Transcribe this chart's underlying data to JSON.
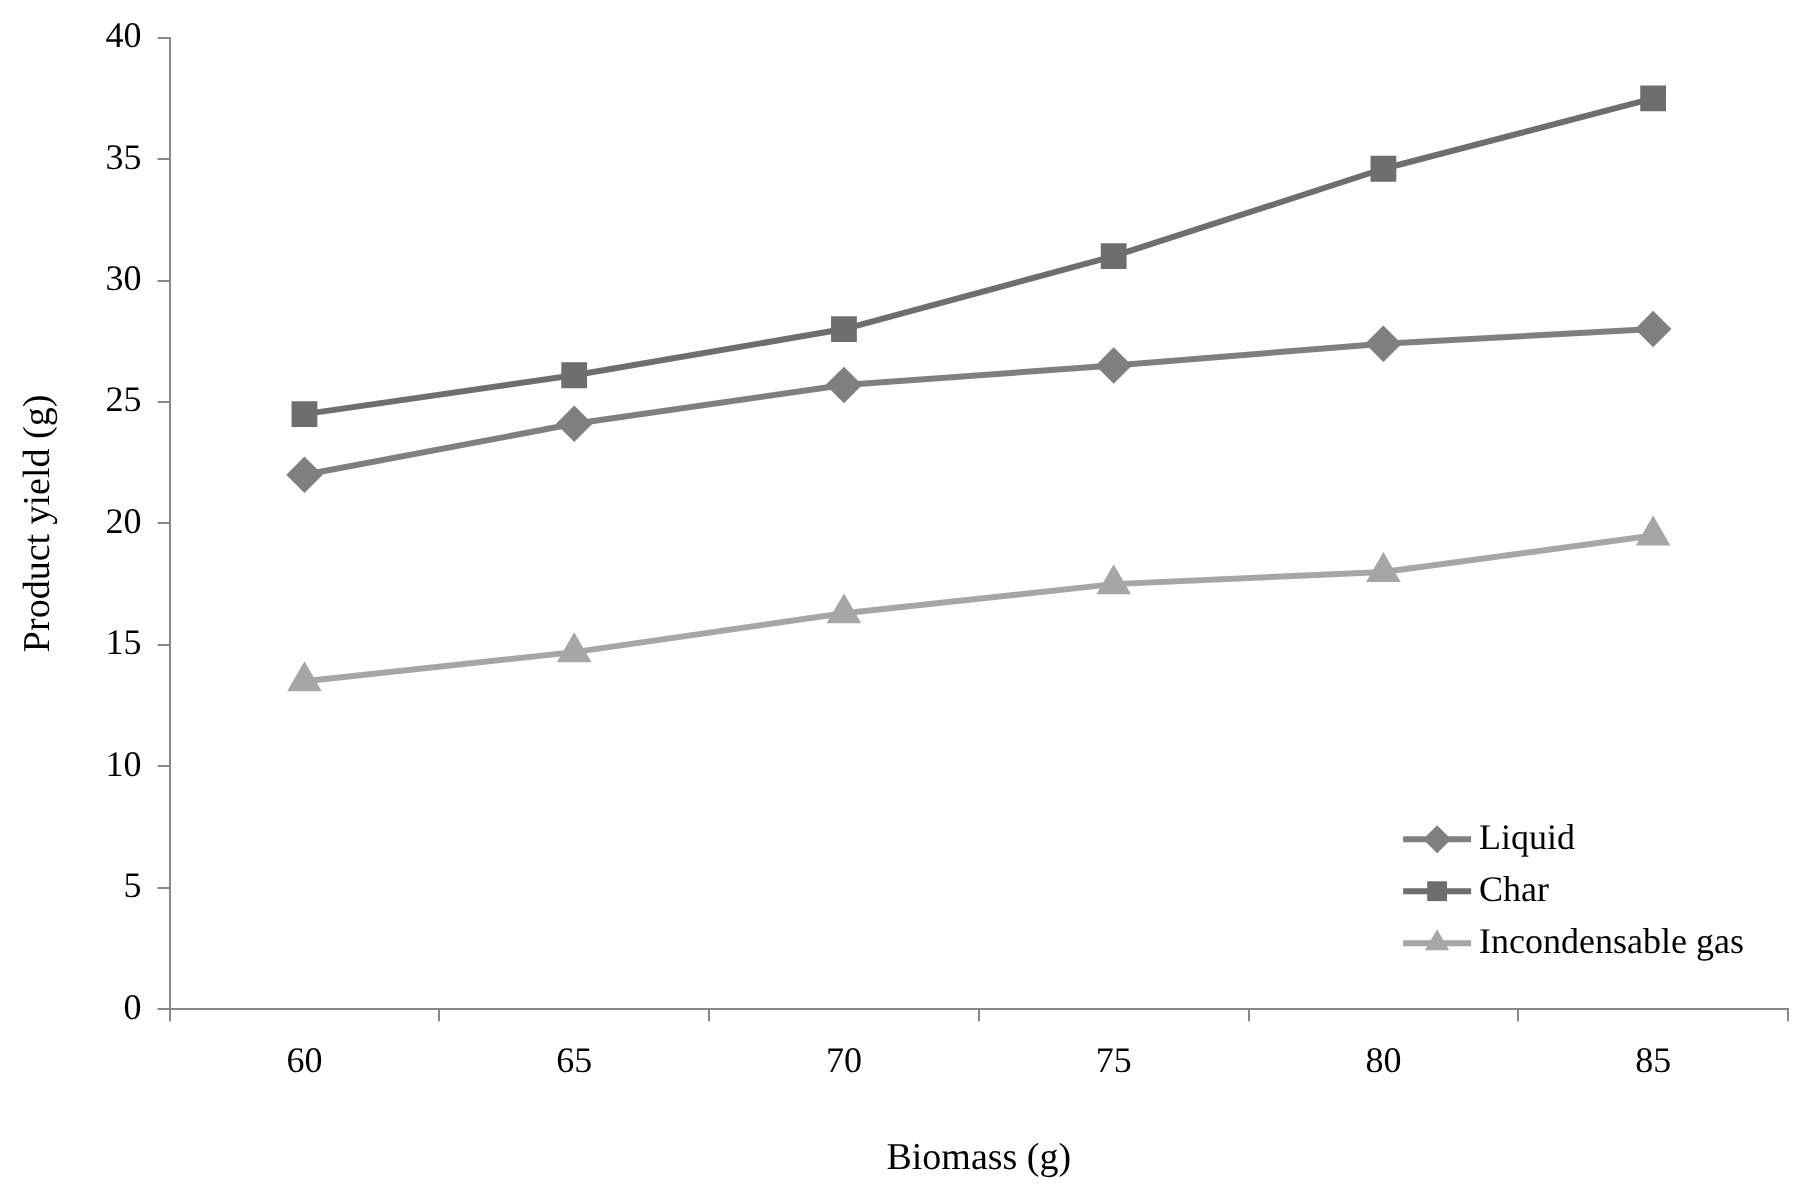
{
  "chart_data": {
    "type": "line",
    "xlabel": "Biomass (g)",
    "ylabel": "Product yield (g)",
    "categories": [
      "60",
      "65",
      "70",
      "75",
      "80",
      "85"
    ],
    "series": [
      {
        "name": "Liquid",
        "color": "#7f7f7f",
        "marker": "diamond",
        "values": [
          22,
          24.1,
          25.7,
          26.5,
          27.4,
          28
        ]
      },
      {
        "name": "Char",
        "color": "#6e6e6e",
        "marker": "square",
        "values": [
          24.5,
          26.1,
          28,
          31,
          34.6,
          37.5
        ]
      },
      {
        "name": "Incondensable gas",
        "color": "#a6a6a6",
        "marker": "triangle",
        "values": [
          13.5,
          14.7,
          16.3,
          17.5,
          18,
          19.5
        ]
      }
    ],
    "ylim": [
      0,
      40
    ],
    "yticks": [
      0,
      5,
      10,
      15,
      20,
      25,
      30,
      35,
      40
    ],
    "grid": false,
    "legend": "bottom right",
    "line_style": "solid"
  }
}
